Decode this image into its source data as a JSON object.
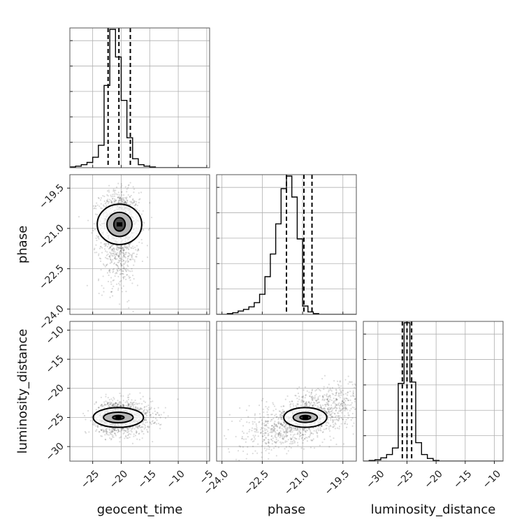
{
  "chart_data": {
    "type": "scatter",
    "kind": "corner-plot",
    "parameters": [
      "geocent_time",
      "phase",
      "luminosity_distance"
    ],
    "axis_labels": {
      "geocent_time": "geocent_time",
      "phase": "phase",
      "luminosity_distance": "luminosity_distance"
    },
    "ranges": {
      "geocent_time": [
        -29,
        -4.5
      ],
      "phase": [
        -24.2,
        -19.0
      ],
      "luminosity_distance": [
        -32.5,
        -8.5
      ]
    },
    "ticks": {
      "geocent_time": [
        -25,
        -20,
        -15,
        -10,
        -5
      ],
      "phase": [
        -24.0,
        -22.5,
        -21.0,
        -19.5
      ],
      "luminosity_distance": [
        -30,
        -25,
        -20,
        -15,
        -10
      ]
    },
    "tick_labels": {
      "geocent_time": [
        "−25",
        "−20",
        "−15",
        "−10",
        "−5"
      ],
      "phase": [
        "−24.0",
        "−22.5",
        "−21.0",
        "−19.5"
      ],
      "luminosity_distance": [
        "−30",
        "−25",
        "−20",
        "−15",
        "−10"
      ]
    },
    "grid": true,
    "quantiles": {
      "geocent_time": [
        -22.3,
        -20.4,
        -18.4
      ],
      "phase": [
        -21.6,
        -20.95,
        -20.65
      ],
      "luminosity_distance": [
        -25.8,
        -25.0,
        -24.2
      ]
    },
    "histograms": {
      "geocent_time": {
        "edges": [
          -29,
          -28,
          -27,
          -26,
          -25,
          -24,
          -23,
          -22,
          -21,
          -20,
          -19,
          -18,
          -17,
          -16,
          -15,
          -14,
          -13,
          -12,
          -11,
          -10,
          -9,
          -8,
          -7,
          -6,
          -5
        ],
        "counts": [
          1,
          2,
          4,
          7,
          14,
          30,
          110,
          185,
          148,
          90,
          40,
          12,
          4,
          2,
          1,
          0,
          0,
          0,
          0,
          0,
          0,
          0,
          0,
          0
        ]
      },
      "phase": {
        "edges": [
          -24.2,
          -24.0,
          -23.8,
          -23.6,
          -23.4,
          -23.2,
          -23.0,
          -22.8,
          -22.6,
          -22.4,
          -22.2,
          -22.0,
          -21.8,
          -21.6,
          -21.4,
          -21.2,
          -21.0,
          -20.8,
          -20.6,
          -20.4,
          -20.2,
          -20.0,
          -19.8,
          -19.6,
          -19.4,
          -19.2,
          -19.0
        ],
        "counts": [
          0,
          0,
          1,
          2,
          4,
          6,
          9,
          14,
          24,
          45,
          72,
          108,
          150,
          165,
          140,
          90,
          10,
          3,
          1,
          0,
          0,
          0,
          0,
          0,
          0,
          0
        ]
      },
      "luminosity_distance": {
        "edges": [
          -32.5,
          -31.5,
          -30.5,
          -29.5,
          -28.5,
          -27.5,
          -26.5,
          -25.5,
          -24.5,
          -23.5,
          -22.5,
          -21.5,
          -20.5,
          -19.5,
          -18.5,
          -17.5,
          -16.5,
          -15.5,
          -14.5,
          -13.5,
          -12.5,
          -11.5,
          -10.5,
          -9.5,
          -8.5
        ],
        "counts": [
          0,
          1,
          2,
          5,
          10,
          20,
          118,
          210,
          120,
          28,
          10,
          4,
          1,
          0,
          0,
          0,
          0,
          0,
          0,
          0,
          0,
          0,
          0,
          0
        ]
      }
    },
    "joint": [
      {
        "x": "geocent_time",
        "y": "phase",
        "center": [
          -20.3,
          -20.85
        ],
        "spread": [
          2.2,
          0.75
        ],
        "contours": [
          {
            "rx": 1.0,
            "ry": 0.25
          },
          {
            "rx": 2.2,
            "ry": 0.45
          },
          {
            "rx": 3.9,
            "ry": 0.75
          }
        ]
      },
      {
        "x": "geocent_time",
        "y": "luminosity_distance",
        "center": [
          -20.5,
          -25.0
        ],
        "spread": [
          2.4,
          1.8
        ],
        "contours": [
          {
            "rx": 1.0,
            "ry": 0.35
          },
          {
            "rx": 2.6,
            "ry": 0.9
          },
          {
            "rx": 4.4,
            "ry": 1.7
          }
        ]
      },
      {
        "x": "phase",
        "y": "luminosity_distance",
        "center": [
          -20.9,
          -25.0
        ],
        "spread": [
          0.8,
          2.0
        ],
        "contours": [
          {
            "rx": 0.2,
            "ry": 0.35
          },
          {
            "rx": 0.45,
            "ry": 0.85
          },
          {
            "rx": 0.8,
            "ry": 1.7
          }
        ]
      }
    ]
  }
}
